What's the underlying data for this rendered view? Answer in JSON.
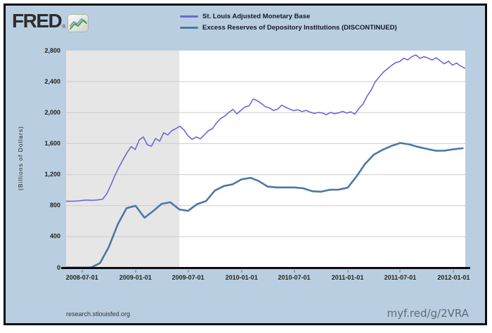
{
  "theme": {
    "canvas_bg": "#b9cfe1",
    "frame_border": "#0d0d0d",
    "brand_color": "#2d2d2d"
  },
  "header": {
    "brand": "FRED",
    "registered_mark": "®",
    "logo_icon": "line-chart-icon"
  },
  "footer": {
    "left": "research.stlouisfed.org",
    "right": "myf.red/g/2VRA"
  },
  "chart_data": {
    "type": "line",
    "title": "",
    "xlabel": "",
    "ylabel": "(Billions of Dollars)",
    "ylim": [
      0,
      2800
    ],
    "yticks": [
      0,
      400,
      800,
      1200,
      1600,
      2000,
      2400,
      2800
    ],
    "ytick_labels": [
      "0",
      "400",
      "800",
      "1,200",
      "1,600",
      "2,000",
      "2,400",
      "2,800"
    ],
    "x_domain": [
      "2008-05-07",
      "2012-02-10"
    ],
    "xticks": [
      "2008-07-01",
      "2009-01-01",
      "2009-07-01",
      "2010-01-01",
      "2010-07-01",
      "2011-01-01",
      "2011-07-01",
      "2012-01-01"
    ],
    "xtick_labels": [
      "2008-07-01",
      "2009-01-01",
      "2009-07-01",
      "2010-01-01",
      "2010-07-01",
      "2011-01-01",
      "2011-07-01",
      "2012-01-01"
    ],
    "grid": true,
    "grid_color": "#cccccc",
    "plot_bg": "#ffffff",
    "recession_color": "#e6e6e6",
    "recession_bands": [
      [
        "2008-05-07",
        "2009-06-01"
      ]
    ],
    "legend_position": "top",
    "series": [
      {
        "name": "St. Louis Adjusted Monetary Base",
        "color": "#6b69d2",
        "stroke_width": 1.6,
        "points": [
          [
            "2008-05-07",
            857
          ],
          [
            "2008-05-21",
            857
          ],
          [
            "2008-06-04",
            858
          ],
          [
            "2008-06-18",
            861
          ],
          [
            "2008-07-02",
            867
          ],
          [
            "2008-07-16",
            873
          ],
          [
            "2008-07-30",
            869
          ],
          [
            "2008-08-13",
            871
          ],
          [
            "2008-08-27",
            875
          ],
          [
            "2008-09-10",
            884
          ],
          [
            "2008-09-24",
            953
          ],
          [
            "2008-10-08",
            1065
          ],
          [
            "2008-10-22",
            1187
          ],
          [
            "2008-11-05",
            1295
          ],
          [
            "2008-11-19",
            1394
          ],
          [
            "2008-12-03",
            1484
          ],
          [
            "2008-12-17",
            1561
          ],
          [
            "2008-12-31",
            1524
          ],
          [
            "2009-01-14",
            1649
          ],
          [
            "2009-01-28",
            1685
          ],
          [
            "2009-02-11",
            1585
          ],
          [
            "2009-02-25",
            1567
          ],
          [
            "2009-03-11",
            1667
          ],
          [
            "2009-03-25",
            1631
          ],
          [
            "2009-04-08",
            1740
          ],
          [
            "2009-04-22",
            1712
          ],
          [
            "2009-05-06",
            1767
          ],
          [
            "2009-05-20",
            1794
          ],
          [
            "2009-06-03",
            1825
          ],
          [
            "2009-06-17",
            1775
          ],
          [
            "2009-07-01",
            1700
          ],
          [
            "2009-07-15",
            1655
          ],
          [
            "2009-07-29",
            1686
          ],
          [
            "2009-08-12",
            1662
          ],
          [
            "2009-08-26",
            1713
          ],
          [
            "2009-09-09",
            1768
          ],
          [
            "2009-09-23",
            1793
          ],
          [
            "2009-10-07",
            1868
          ],
          [
            "2009-10-21",
            1924
          ],
          [
            "2009-11-04",
            1955
          ],
          [
            "2009-11-18",
            2002
          ],
          [
            "2009-12-02",
            2042
          ],
          [
            "2009-12-16",
            1984
          ],
          [
            "2009-12-30",
            2031
          ],
          [
            "2010-01-13",
            2072
          ],
          [
            "2010-01-27",
            2088
          ],
          [
            "2010-02-10",
            2176
          ],
          [
            "2010-02-24",
            2154
          ],
          [
            "2010-03-10",
            2118
          ],
          [
            "2010-03-24",
            2075
          ],
          [
            "2010-04-07",
            2061
          ],
          [
            "2010-04-21",
            2027
          ],
          [
            "2010-05-05",
            2044
          ],
          [
            "2010-05-19",
            2095
          ],
          [
            "2010-06-02",
            2070
          ],
          [
            "2010-06-16",
            2043
          ],
          [
            "2010-06-30",
            2025
          ],
          [
            "2010-07-14",
            2037
          ],
          [
            "2010-07-28",
            2013
          ],
          [
            "2010-08-11",
            2029
          ],
          [
            "2010-08-25",
            2006
          ],
          [
            "2010-09-08",
            1990
          ],
          [
            "2010-09-22",
            2002
          ],
          [
            "2010-10-06",
            1996
          ],
          [
            "2010-10-20",
            1972
          ],
          [
            "2010-11-03",
            2003
          ],
          [
            "2010-11-17",
            1986
          ],
          [
            "2010-12-01",
            1996
          ],
          [
            "2010-12-15",
            2016
          ],
          [
            "2010-12-29",
            1994
          ],
          [
            "2011-01-12",
            2010
          ],
          [
            "2011-01-26",
            1981
          ],
          [
            "2011-02-09",
            2053
          ],
          [
            "2011-02-23",
            2110
          ],
          [
            "2011-03-09",
            2215
          ],
          [
            "2011-03-23",
            2290
          ],
          [
            "2011-04-06",
            2397
          ],
          [
            "2011-04-20",
            2460
          ],
          [
            "2011-05-04",
            2521
          ],
          [
            "2011-05-18",
            2564
          ],
          [
            "2011-06-01",
            2607
          ],
          [
            "2011-06-15",
            2644
          ],
          [
            "2011-06-29",
            2659
          ],
          [
            "2011-07-13",
            2701
          ],
          [
            "2011-07-27",
            2680
          ],
          [
            "2011-08-10",
            2721
          ],
          [
            "2011-08-24",
            2745
          ],
          [
            "2011-09-07",
            2699
          ],
          [
            "2011-09-21",
            2722
          ],
          [
            "2011-10-05",
            2702
          ],
          [
            "2011-10-19",
            2679
          ],
          [
            "2011-11-02",
            2708
          ],
          [
            "2011-11-16",
            2668
          ],
          [
            "2011-11-30",
            2630
          ],
          [
            "2011-12-14",
            2663
          ],
          [
            "2011-12-28",
            2612
          ],
          [
            "2012-01-11",
            2640
          ],
          [
            "2012-01-25",
            2600
          ],
          [
            "2012-02-08",
            2573
          ]
        ]
      },
      {
        "name": "Excess Reserves of Depository Institutions (DISCONTINUED)",
        "color": "#4a77a8",
        "stroke_width": 2.6,
        "points": [
          [
            "2008-05-07",
            2
          ],
          [
            "2008-06-01",
            2
          ],
          [
            "2008-07-01",
            2
          ],
          [
            "2008-08-01",
            2
          ],
          [
            "2008-09-01",
            60
          ],
          [
            "2008-10-01",
            267
          ],
          [
            "2008-11-01",
            559
          ],
          [
            "2008-12-01",
            767
          ],
          [
            "2009-01-01",
            798
          ],
          [
            "2009-02-01",
            644
          ],
          [
            "2009-03-01",
            725
          ],
          [
            "2009-04-01",
            824
          ],
          [
            "2009-05-01",
            844
          ],
          [
            "2009-06-01",
            750
          ],
          [
            "2009-07-01",
            733
          ],
          [
            "2009-08-01",
            819
          ],
          [
            "2009-09-01",
            860
          ],
          [
            "2009-10-01",
            995
          ],
          [
            "2009-11-01",
            1053
          ],
          [
            "2009-12-01",
            1075
          ],
          [
            "2010-01-01",
            1139
          ],
          [
            "2010-02-01",
            1159
          ],
          [
            "2010-03-01",
            1117
          ],
          [
            "2010-04-01",
            1046
          ],
          [
            "2010-05-01",
            1035
          ],
          [
            "2010-06-01",
            1035
          ],
          [
            "2010-07-01",
            1035
          ],
          [
            "2010-08-01",
            1024
          ],
          [
            "2010-09-01",
            986
          ],
          [
            "2010-10-01",
            980
          ],
          [
            "2010-11-01",
            1005
          ],
          [
            "2010-12-01",
            1007
          ],
          [
            "2011-01-01",
            1031
          ],
          [
            "2011-02-01",
            1178
          ],
          [
            "2011-03-01",
            1334
          ],
          [
            "2011-04-01",
            1458
          ],
          [
            "2011-05-01",
            1520
          ],
          [
            "2011-06-01",
            1570
          ],
          [
            "2011-07-01",
            1608
          ],
          [
            "2011-08-01",
            1590
          ],
          [
            "2011-09-01",
            1557
          ],
          [
            "2011-10-01",
            1532
          ],
          [
            "2011-11-01",
            1508
          ],
          [
            "2011-12-01",
            1510
          ],
          [
            "2012-01-01",
            1528
          ],
          [
            "2012-02-01",
            1540
          ]
        ]
      }
    ]
  }
}
